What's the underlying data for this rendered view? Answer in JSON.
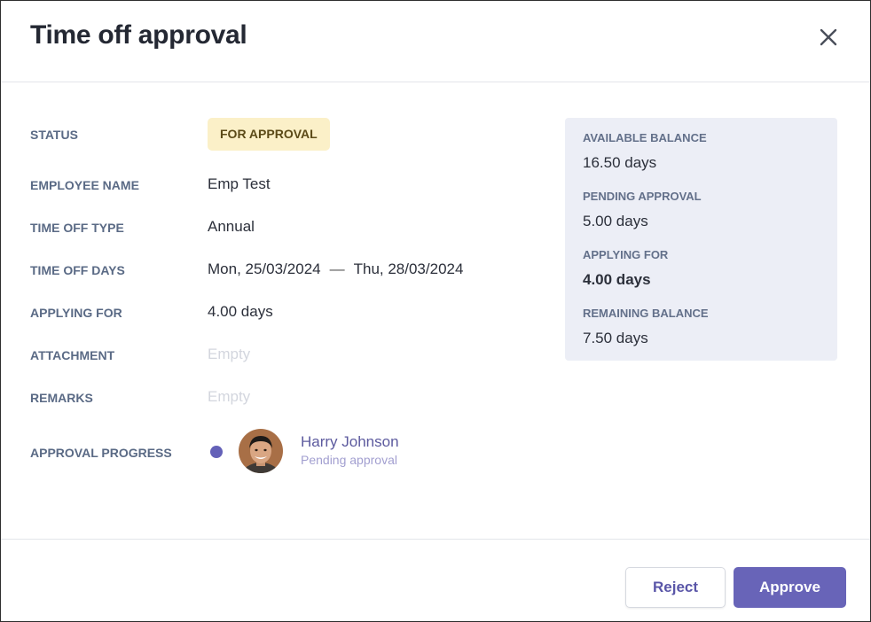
{
  "dialog": {
    "title": "Time off approval",
    "close_icon": "close-icon"
  },
  "fields": {
    "status": {
      "label": "STATUS",
      "value": "FOR APPROVAL"
    },
    "employee_name": {
      "label": "EMPLOYEE NAME",
      "value": "Emp Test"
    },
    "time_off_type": {
      "label": "TIME OFF TYPE",
      "value": "Annual"
    },
    "time_off_days": {
      "label": "TIME OFF DAYS",
      "start": "Mon, 25/03/2024",
      "separator": "—",
      "end": "Thu, 28/03/2024"
    },
    "applying_for": {
      "label": "APPLYING FOR",
      "value": "4.00 days"
    },
    "attachment": {
      "label": "ATTACHMENT",
      "value": "Empty"
    },
    "remarks": {
      "label": "REMARKS",
      "value": "Empty"
    },
    "approval_progress": {
      "label": "APPROVAL PROGRESS",
      "approver_name": "Harry Johnson",
      "approver_status": "Pending approval"
    }
  },
  "balance": {
    "available": {
      "label": "AVAILABLE BALANCE",
      "value": "16.50 days"
    },
    "pending": {
      "label": "PENDING APPROVAL",
      "value": "5.00 days"
    },
    "applying": {
      "label": "APPLYING FOR",
      "value": "4.00 days"
    },
    "remaining": {
      "label": "REMAINING BALANCE",
      "value": "7.50 days"
    }
  },
  "footer": {
    "reject_label": "Reject",
    "approve_label": "Approve"
  },
  "colors": {
    "accent": "#6864b8",
    "status_badge_bg": "#fbf0c8",
    "balance_card_bg": "#eceef6"
  }
}
